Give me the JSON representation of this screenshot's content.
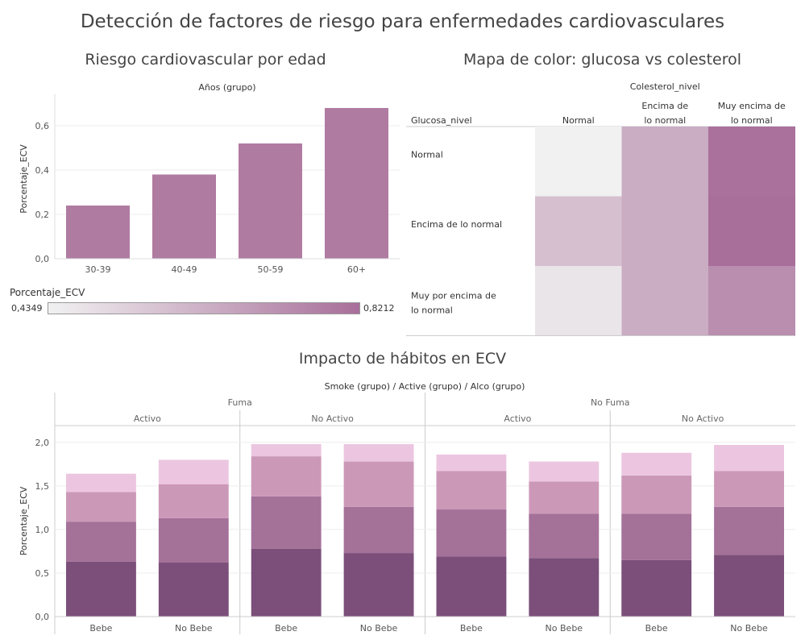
{
  "title": "Detección de factores de riesgo para enfermedades cardiovasculares",
  "colors": {
    "bar": "#b07ba1",
    "legend_low": "#f1f1f1",
    "legend_high": "#a86f9a",
    "stack": [
      "#7b4f7a",
      "#a47199",
      "#cc98b8",
      "#ecc6e0"
    ]
  },
  "chart_data": [
    {
      "type": "bar",
      "title": "Riesgo cardiovascular por edad",
      "column_header": "Años (grupo)",
      "ylabel": "Porcentaje_ECV",
      "categories": [
        "30-39",
        "40-49",
        "50-59",
        "60+"
      ],
      "values": [
        0.24,
        0.38,
        0.52,
        0.68
      ],
      "ylim": [
        0,
        0.72
      ],
      "yticks": [
        0.0,
        0.2,
        0.4,
        0.6
      ],
      "ytick_labels": [
        "0,0",
        "0,2",
        "0,4",
        "0,6"
      ],
      "grid": true
    },
    {
      "type": "heatmap",
      "title": "Mapa de color: glucosa vs colesterol",
      "column_header": "Colesterol_nivel",
      "row_header": "Glucosa_nivel",
      "columns": [
        "Normal",
        "Encima de lo normal",
        "Muy encima de lo normal"
      ],
      "rows": [
        "Normal",
        "Encima de lo normal",
        "Muy por encima de lo normal"
      ],
      "values": [
        [
          0.435,
          0.64,
          0.815
        ],
        [
          0.58,
          0.64,
          0.82
        ],
        [
          0.47,
          0.64,
          0.73
        ]
      ],
      "legend": {
        "title": "Porcentaje_ECV",
        "min_label": "0,4349",
        "max_label": "0,8212",
        "min": 0.4349,
        "max": 0.8212
      }
    },
    {
      "type": "bar",
      "stacked": true,
      "title": "Impacto de hábitos en ECV",
      "header": "Smoke (grupo)  /  Active (grupo)  /  Alco (grupo)",
      "ylabel": "Porcentaje_ECV",
      "smoke_groups": [
        "Fuma",
        "No Fuma"
      ],
      "active_groups": [
        "Activo",
        "No Activo",
        "Activo",
        "No Activo"
      ],
      "categories": [
        "Bebe",
        "No Bebe",
        "Bebe",
        "No Bebe",
        "Bebe",
        "No Bebe",
        "Bebe",
        "No Bebe"
      ],
      "series": [
        {
          "values": [
            0.63,
            0.62,
            0.78,
            0.73,
            0.69,
            0.67,
            0.65,
            0.71
          ]
        },
        {
          "values": [
            0.46,
            0.51,
            0.6,
            0.53,
            0.54,
            0.51,
            0.53,
            0.55
          ]
        },
        {
          "values": [
            0.34,
            0.39,
            0.46,
            0.52,
            0.44,
            0.37,
            0.44,
            0.41
          ]
        },
        {
          "values": [
            0.21,
            0.28,
            0.14,
            0.2,
            0.19,
            0.23,
            0.26,
            0.3
          ]
        }
      ],
      "ylim": [
        0,
        2.1
      ],
      "yticks": [
        0.0,
        0.5,
        1.0,
        1.5,
        2.0
      ],
      "ytick_labels": [
        "0,0",
        "0,5",
        "1,0",
        "1,5",
        "2,0"
      ],
      "grid": true
    }
  ]
}
